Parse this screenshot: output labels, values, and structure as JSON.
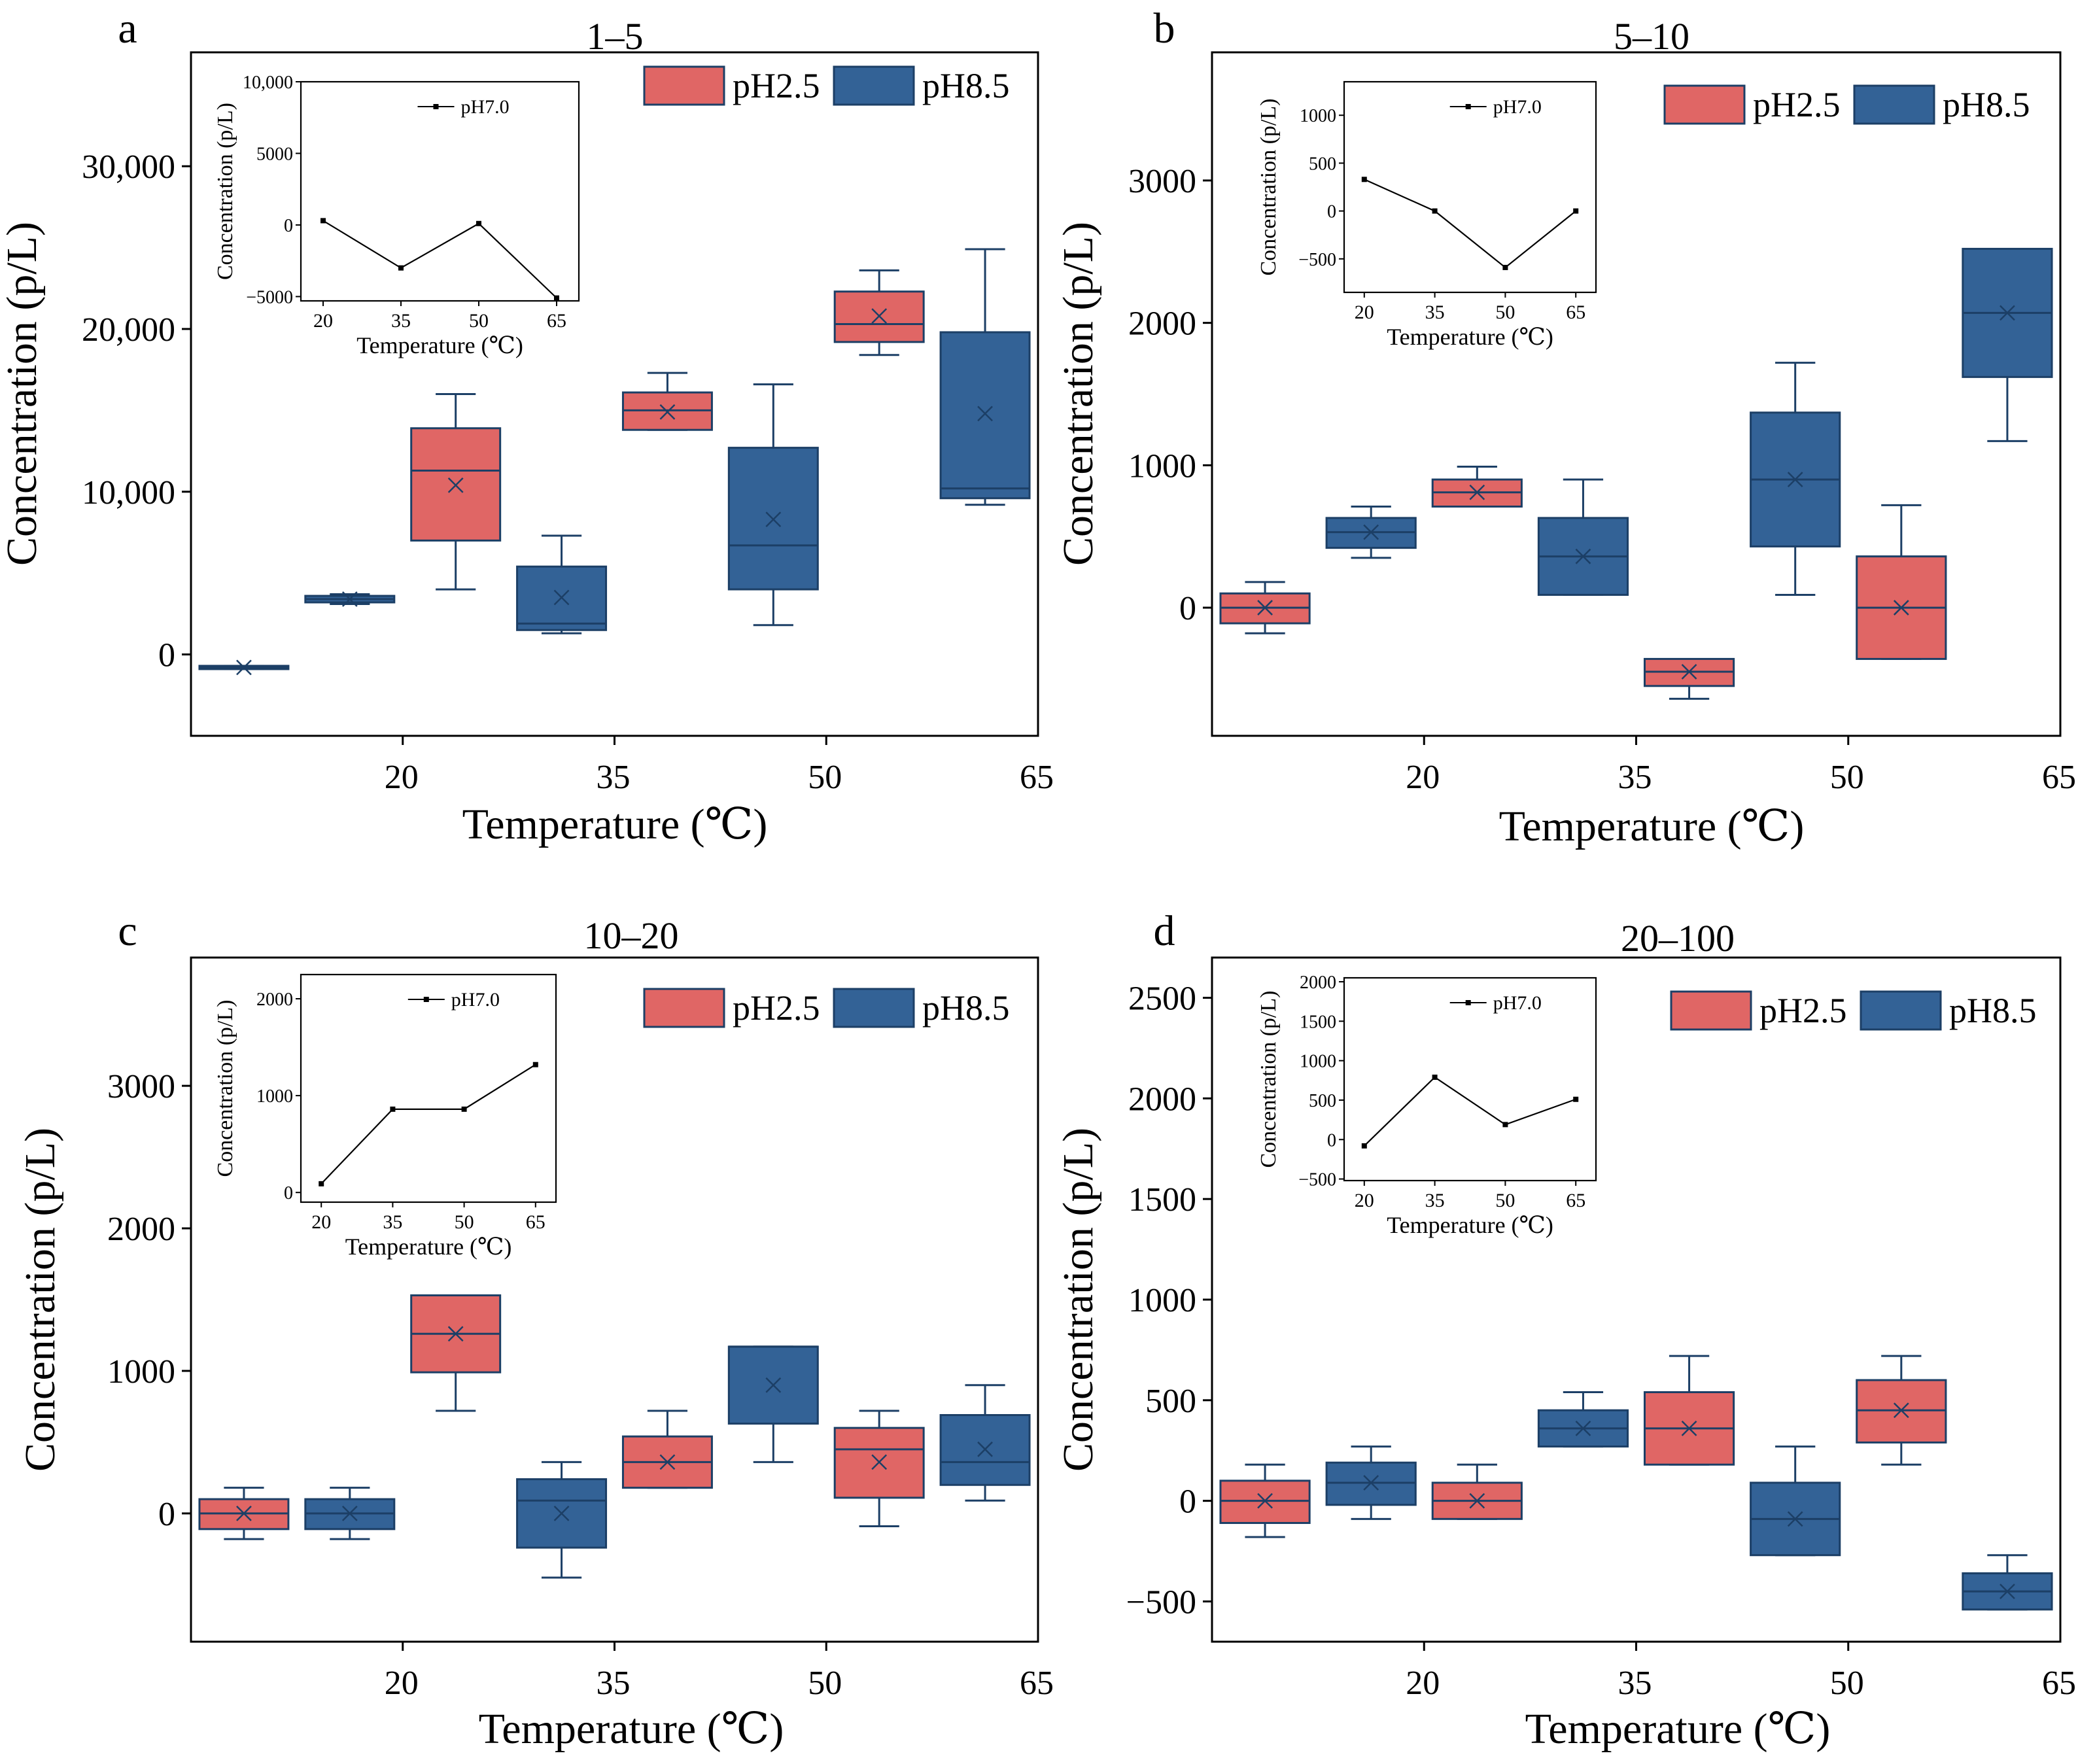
{
  "colors": {
    "ph25_fill": "#e06665",
    "ph85_fill": "#336296",
    "box_stroke": "#1c3f66",
    "mean_marker": "#1c3f66"
  },
  "chart_data": [
    {
      "panel_label": "a",
      "title": "1–5",
      "type": "box",
      "xlabel": "Temperature (℃)",
      "ylabel": "Concentration (p/L)",
      "categories": [
        "20",
        "35",
        "50",
        "65"
      ],
      "ylim": [
        -5000,
        37000
      ],
      "yticks": [
        0,
        10000,
        20000,
        30000
      ],
      "ytick_labels": [
        "0",
        "10,000",
        "20,000",
        "30,000"
      ],
      "legend": [
        "pH2.5",
        "pH8.5"
      ],
      "series": [
        {
          "name": "pH2.5",
          "boxes": [
            {
              "whisker_low": -900,
              "q1": -900,
              "median": -800,
              "q3": -700,
              "whisker_high": -700,
              "mean": -800
            },
            {
              "whisker_low": 4000,
              "q1": 7000,
              "median": 11300,
              "q3": 13900,
              "whisker_high": 16000,
              "mean": 10400
            },
            {
              "whisker_low": 13800,
              "q1": 13800,
              "median": 15000,
              "q3": 16100,
              "whisker_high": 17300,
              "mean": 14900
            },
            {
              "whisker_low": 18400,
              "q1": 19200,
              "median": 20300,
              "q3": 22300,
              "whisker_high": 23600,
              "mean": 20800
            }
          ]
        },
        {
          "name": "pH8.5",
          "boxes": [
            {
              "whisker_low": 3100,
              "q1": 3200,
              "median": 3400,
              "q3": 3600,
              "whisker_high": 3700,
              "mean": 3400
            },
            {
              "whisker_low": 1300,
              "q1": 1500,
              "median": 1900,
              "q3": 5400,
              "whisker_high": 7300,
              "mean": 3500
            },
            {
              "whisker_low": 1800,
              "q1": 4000,
              "median": 6700,
              "q3": 12700,
              "whisker_high": 16600,
              "mean": 8300
            },
            {
              "whisker_low": 9200,
              "q1": 9600,
              "median": 10200,
              "q3": 19800,
              "whisker_high": 24900,
              "mean": 14800
            }
          ]
        }
      ],
      "inset": {
        "type": "line",
        "xlabel": "Temperature (℃)",
        "ylabel": "Concentration (p/L)",
        "legend": "pH7.0",
        "categories": [
          "20",
          "35",
          "50",
          "65"
        ],
        "values": [
          300,
          -3000,
          100,
          -5100
        ],
        "ylim": [
          -5300,
          10000
        ],
        "yticks": [
          -5000,
          0,
          5000,
          10000
        ],
        "ytick_labels": [
          "−5000",
          "0",
          "5000",
          "10,000"
        ]
      }
    },
    {
      "panel_label": "b",
      "title": "5–10",
      "type": "box",
      "xlabel": "Temperature (℃)",
      "ylabel": "Concentration (p/L)",
      "categories": [
        "20",
        "35",
        "50",
        "65"
      ],
      "ylim": [
        -900,
        3900
      ],
      "yticks": [
        0,
        1000,
        2000,
        3000
      ],
      "ytick_labels": [
        "0",
        "1000",
        "2000",
        "3000"
      ],
      "legend": [
        "pH2.5",
        "pH8.5"
      ],
      "series": [
        {
          "name": "pH2.5",
          "boxes": [
            {
              "whisker_low": -180,
              "q1": -110,
              "median": 0,
              "q3": 100,
              "whisker_high": 180,
              "mean": 0
            },
            {
              "whisker_low": 710,
              "q1": 710,
              "median": 810,
              "q3": 900,
              "whisker_high": 990,
              "mean": 810
            },
            {
              "whisker_low": -640,
              "q1": -550,
              "median": -450,
              "q3": -360,
              "whisker_high": -360,
              "mean": -450
            },
            {
              "whisker_low": -360,
              "q1": -360,
              "median": 0,
              "q3": 360,
              "whisker_high": 720,
              "mean": 0
            }
          ]
        },
        {
          "name": "pH8.5",
          "boxes": [
            {
              "whisker_low": 350,
              "q1": 420,
              "median": 530,
              "q3": 630,
              "whisker_high": 710,
              "mean": 530
            },
            {
              "whisker_low": 90,
              "q1": 90,
              "median": 360,
              "q3": 630,
              "whisker_high": 900,
              "mean": 360
            },
            {
              "whisker_low": 90,
              "q1": 430,
              "median": 900,
              "q3": 1370,
              "whisker_high": 1720,
              "mean": 900
            },
            {
              "whisker_low": 1170,
              "q1": 1620,
              "median": 2070,
              "q3": 2520,
              "whisker_high": 2520,
              "mean": 2070
            }
          ]
        }
      ],
      "inset": {
        "type": "line",
        "xlabel": "Temperature (℃)",
        "ylabel": "Concentration (p/L)",
        "legend": "pH7.0",
        "categories": [
          "20",
          "35",
          "50",
          "65"
        ],
        "values": [
          330,
          0,
          -590,
          0
        ],
        "ylim": [
          -850,
          1350
        ],
        "yticks": [
          -500,
          0,
          500,
          1000
        ],
        "ytick_labels": [
          "−500",
          "0",
          "500",
          "1000"
        ]
      }
    },
    {
      "panel_label": "c",
      "title": "10–20",
      "type": "box",
      "xlabel": "Temperature (℃)",
      "ylabel": "Concentration (p/L)",
      "categories": [
        "20",
        "35",
        "50",
        "65"
      ],
      "ylim": [
        -900,
        3900
      ],
      "yticks": [
        0,
        1000,
        2000,
        3000
      ],
      "ytick_labels": [
        "0",
        "1000",
        "2000",
        "3000"
      ],
      "legend": [
        "pH2.5",
        "pH8.5"
      ],
      "series": [
        {
          "name": "pH2.5",
          "boxes": [
            {
              "whisker_low": -180,
              "q1": -110,
              "median": 0,
              "q3": 100,
              "whisker_high": 180,
              "mean": 0
            },
            {
              "whisker_low": 720,
              "q1": 990,
              "median": 1260,
              "q3": 1530,
              "whisker_high": 1530,
              "mean": 1260
            },
            {
              "whisker_low": 180,
              "q1": 180,
              "median": 360,
              "q3": 540,
              "whisker_high": 720,
              "mean": 360
            },
            {
              "whisker_low": -90,
              "q1": 110,
              "median": 450,
              "q3": 600,
              "whisker_high": 720,
              "mean": 360
            }
          ]
        },
        {
          "name": "pH8.5",
          "boxes": [
            {
              "whisker_low": -180,
              "q1": -110,
              "median": 0,
              "q3": 100,
              "whisker_high": 180,
              "mean": 0
            },
            {
              "whisker_low": -450,
              "q1": -240,
              "median": 90,
              "q3": 240,
              "whisker_high": 360,
              "mean": 0
            },
            {
              "whisker_low": 360,
              "q1": 630,
              "median": 1170,
              "q3": 1170,
              "whisker_high": 1170,
              "mean": 900
            },
            {
              "whisker_low": 90,
              "q1": 200,
              "median": 360,
              "q3": 690,
              "whisker_high": 900,
              "mean": 450
            }
          ]
        }
      ],
      "inset": {
        "type": "line",
        "xlabel": "Temperature (℃)",
        "ylabel": "Concentration (p/L)",
        "legend": "pH7.0",
        "categories": [
          "20",
          "35",
          "50",
          "65"
        ],
        "values": [
          90,
          860,
          860,
          1320
        ],
        "ylim": [
          -100,
          2250
        ],
        "yticks": [
          0,
          1000,
          2000
        ],
        "ytick_labels": [
          "0",
          "1000",
          "2000"
        ]
      }
    },
    {
      "panel_label": "d",
      "title": "20–100",
      "type": "box",
      "xlabel": "Temperature (℃)",
      "ylabel": "Concentration (p/L)",
      "categories": [
        "20",
        "35",
        "50",
        "65"
      ],
      "ylim": [
        -700,
        2700
      ],
      "yticks": [
        -500,
        0,
        500,
        1000,
        1500,
        2000,
        2500
      ],
      "ytick_labels": [
        "−500",
        "0",
        "500",
        "1000",
        "1500",
        "2000",
        "2500"
      ],
      "legend": [
        "pH2.5",
        "pH8.5"
      ],
      "series": [
        {
          "name": "pH2.5",
          "boxes": [
            {
              "whisker_low": -180,
              "q1": -110,
              "median": 0,
              "q3": 100,
              "whisker_high": 180,
              "mean": 0
            },
            {
              "whisker_low": -90,
              "q1": -90,
              "median": 0,
              "q3": 90,
              "whisker_high": 180,
              "mean": 0
            },
            {
              "whisker_low": 180,
              "q1": 180,
              "median": 360,
              "q3": 540,
              "whisker_high": 720,
              "mean": 360
            },
            {
              "whisker_low": 180,
              "q1": 290,
              "median": 450,
              "q3": 600,
              "whisker_high": 720,
              "mean": 450
            }
          ]
        },
        {
          "name": "pH8.5",
          "boxes": [
            {
              "whisker_low": -90,
              "q1": -20,
              "median": 90,
              "q3": 190,
              "whisker_high": 270,
              "mean": 90
            },
            {
              "whisker_low": 270,
              "q1": 270,
              "median": 360,
              "q3": 450,
              "whisker_high": 540,
              "mean": 360
            },
            {
              "whisker_low": -270,
              "q1": -270,
              "median": -90,
              "q3": 90,
              "whisker_high": 270,
              "mean": -90
            },
            {
              "whisker_low": -540,
              "q1": -540,
              "median": -450,
              "q3": -360,
              "whisker_high": -270,
              "mean": -450
            }
          ]
        }
      ],
      "inset": {
        "type": "line",
        "xlabel": "Temperature (℃)",
        "ylabel": "Concentration (p/L)",
        "legend": "pH7.0",
        "categories": [
          "20",
          "35",
          "50",
          "65"
        ],
        "values": [
          -80,
          790,
          190,
          510
        ],
        "ylim": [
          -520,
          2050
        ],
        "yticks": [
          -500,
          0,
          500,
          1000,
          1500,
          2000
        ],
        "ytick_labels": [
          "−500",
          "0",
          "500",
          "1000",
          "1500",
          "2000"
        ]
      }
    }
  ]
}
